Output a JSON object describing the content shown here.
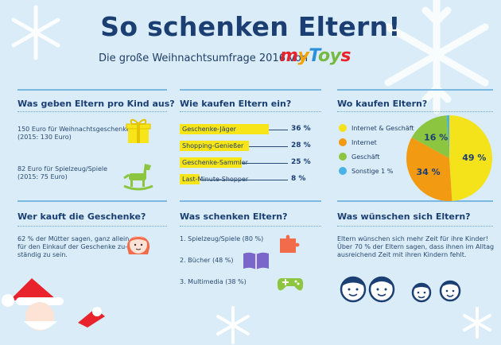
{
  "header": {
    "title": "So schenken Eltern!",
    "subtitle": "Die große Weihnachtsumfrage 2016 von",
    "logo": {
      "p1": "m",
      "p2": "y",
      "p3": "T",
      "p4": "oy",
      "p5": "s"
    }
  },
  "section_budget": {
    "question": "Was geben Eltern pro Kind aus?",
    "item1": {
      "line1": "150 Euro für Weihnachtsgeschenke",
      "line2": "(2015: 130 Euro)",
      "icon": "gift-icon"
    },
    "item2": {
      "line1": "82 Euro für Spielzeug/Spiele",
      "line2": "(2015: 75 Euro)",
      "icon": "rocking-horse-icon"
    }
  },
  "section_buyer": {
    "question": "Wer kauft die Geschenke?",
    "line1": "62 % der Mütter sagen, ganz allein",
    "line2": "für den Einkauf der Geschenke zu-",
    "line3": "ständig zu sein.",
    "icon": "mother-face-icon"
  },
  "section_gifts": {
    "question": "Was schenken Eltern?",
    "item1": "1. Spielzeug/Spiele (80 %)",
    "item2": "2. Bücher (48 %)",
    "item3": "3. Multimedia (38 %)",
    "icons": [
      "puzzle-icon",
      "book-icon",
      "gamepad-icon"
    ]
  },
  "section_wishes": {
    "question": "Was wünschen sich Eltern?",
    "line1": "Eltern wünschen sich mehr Zeit für ihre Kinder!",
    "line2": "Über 70 % der Eltern sagen, dass ihnen im Alltag",
    "line3": "ausreichend Zeit mit ihren Kindern fehlt.",
    "icon": "family-faces-icon"
  },
  "colors": {
    "title": "#1b3f73",
    "bar": "#f7e51a",
    "pie_internet_geschaeft": "#f4e31a",
    "pie_internet": "#f29a12",
    "pie_geschaeft": "#8cc540",
    "pie_sonstige": "#4ab3e6"
  },
  "chart_data": [
    {
      "type": "bar",
      "title": "Wie kaufen Eltern ein?",
      "categories": [
        "Geschenke-Jäger",
        "Shopping-Genießer",
        "Geschenke-Sammler",
        "Last-Minute-Shopper"
      ],
      "values": [
        36,
        28,
        25,
        8
      ],
      "value_labels": [
        "36 %",
        "28 %",
        "25 %",
        "8 %"
      ],
      "orientation": "horizontal",
      "xlim": [
        0,
        40
      ]
    },
    {
      "type": "pie",
      "title": "Wo kaufen Eltern?",
      "categories": [
        "Internet & Geschäft",
        "Internet",
        "Geschäft",
        "Sonstige 1 %"
      ],
      "values": [
        49,
        34,
        16,
        1
      ],
      "slice_labels": [
        "49 %",
        "34 %",
        "16 %",
        ""
      ],
      "legend": "left"
    }
  ]
}
